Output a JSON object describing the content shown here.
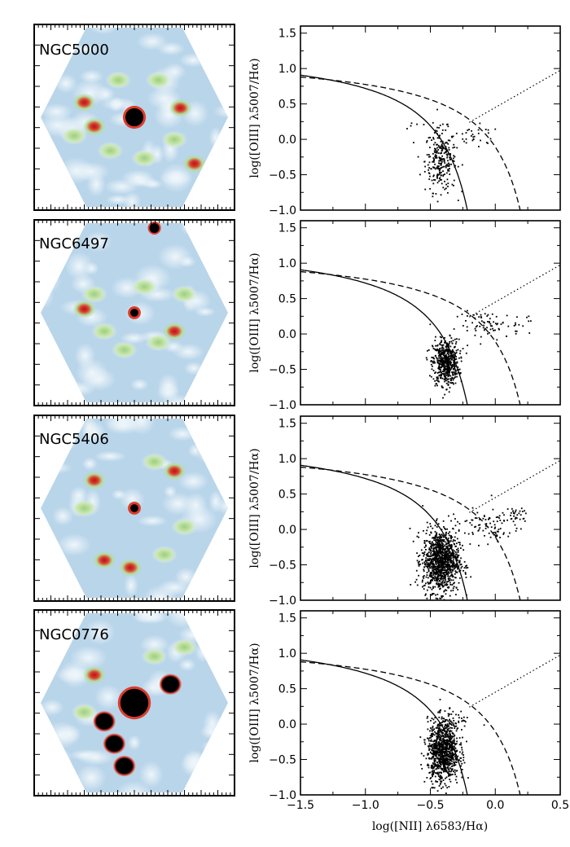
{
  "figure": {
    "x_axis_label": "log([NII] λ6583/Hα)",
    "y_axis_label": "log([OIII] λ5007/Hα)",
    "colors": {
      "map_background": "#b9d5ea",
      "map_light": "#dcecf5",
      "map_green": "#b5dc9a",
      "map_red": "#dc3c2c",
      "map_core": "#000000",
      "ink": "#000000"
    }
  },
  "chart_data": [
    {
      "type": "scatter",
      "galaxy": "NGC5000",
      "title": "",
      "xlabel": "",
      "ylabel": "log([OIII] λ5007/Hα)",
      "xlim": [
        -1.5,
        0.5
      ],
      "ylim": [
        -1.0,
        1.6
      ],
      "yticks": [
        "1.5",
        "1.0",
        "0.5",
        "0.0",
        "−0.5",
        "−1.0"
      ],
      "xticks": [],
      "curves": [
        "kewley-maximum-starburst (dashed)",
        "kauffmann-demarcation (solid)",
        "seyfert-liner-line (dotted)"
      ],
      "clusters": [
        {
          "center_x": -0.42,
          "center_y": -0.3,
          "spread_x": 0.06,
          "spread_y": 0.22,
          "count": 260
        },
        {
          "center_x": -0.15,
          "center_y": 0.03,
          "spread_x": 0.1,
          "spread_y": 0.08,
          "count": 30
        },
        {
          "center_x": -0.6,
          "center_y": 0.2,
          "spread_x": 0.05,
          "spread_y": 0.05,
          "count": 6
        }
      ]
    },
    {
      "type": "scatter",
      "galaxy": "NGC6497",
      "title": "",
      "xlabel": "",
      "ylabel": "log([OIII] λ5007/Hα)",
      "xlim": [
        -1.5,
        0.5
      ],
      "ylim": [
        -1.0,
        1.6
      ],
      "yticks": [
        "1.5",
        "1.0",
        "0.5",
        "0.0",
        "−0.5",
        "−1.0"
      ],
      "xticks": [],
      "curves": [
        "kewley-maximum-starburst (dashed)",
        "kauffmann-demarcation (solid)",
        "seyfert-liner-line (dotted)"
      ],
      "clusters": [
        {
          "center_x": -0.38,
          "center_y": -0.4,
          "spread_x": 0.05,
          "spread_y": 0.16,
          "count": 560
        },
        {
          "center_x": -0.05,
          "center_y": 0.12,
          "spread_x": 0.12,
          "spread_y": 0.1,
          "count": 75
        },
        {
          "center_x": 0.22,
          "center_y": 0.2,
          "spread_x": 0.03,
          "spread_y": 0.04,
          "count": 8
        }
      ]
    },
    {
      "type": "scatter",
      "galaxy": "NGC5406",
      "title": "",
      "xlabel": "",
      "ylabel": "log([OIII] λ5007/Hα)",
      "xlim": [
        -1.5,
        0.5
      ],
      "ylim": [
        -1.0,
        1.6
      ],
      "yticks": [
        "1.5",
        "1.0",
        "0.5",
        "0.0",
        "−0.5",
        "−1.0"
      ],
      "xticks": [],
      "curves": [
        "kewley-maximum-starburst (dashed)",
        "kauffmann-demarcation (solid)",
        "seyfert-liner-line (dotted)"
      ],
      "clusters": [
        {
          "center_x": -0.42,
          "center_y": -0.45,
          "spread_x": 0.07,
          "spread_y": 0.22,
          "count": 1100
        },
        {
          "center_x": -0.08,
          "center_y": 0.05,
          "spread_x": 0.14,
          "spread_y": 0.12,
          "count": 90
        },
        {
          "center_x": 0.15,
          "center_y": 0.2,
          "spread_x": 0.05,
          "spread_y": 0.05,
          "count": 30
        }
      ]
    },
    {
      "type": "scatter",
      "galaxy": "NGC0776",
      "title": "",
      "xlabel": "log([NII] λ6583/Hα)",
      "ylabel": "log([OIII] λ5007/Hα)",
      "xlim": [
        -1.5,
        0.5
      ],
      "ylim": [
        -1.0,
        1.6
      ],
      "yticks": [
        "1.5",
        "1.0",
        "0.5",
        "0.0",
        "−0.5",
        "−1.0"
      ],
      "xticks": [
        "−1.5",
        "−1.0",
        "−0.5",
        "0.0",
        "0.5"
      ],
      "curves": [
        "kewley-maximum-starburst (dashed)",
        "kauffmann-demarcation (solid)",
        "seyfert-liner-line (dotted)"
      ],
      "clusters": [
        {
          "center_x": -0.4,
          "center_y": -0.38,
          "spread_x": 0.06,
          "spread_y": 0.22,
          "count": 950
        },
        {
          "center_x": -0.3,
          "center_y": 0.05,
          "spread_x": 0.05,
          "spread_y": 0.07,
          "count": 30
        }
      ]
    }
  ],
  "maps": [
    {
      "label": "NGC5000",
      "core": [
        0.5,
        0.5
      ],
      "core_size": 0.045,
      "hotspots": [
        [
          0.25,
          0.42,
          "r"
        ],
        [
          0.3,
          0.55,
          "r"
        ],
        [
          0.73,
          0.45,
          "r"
        ],
        [
          0.8,
          0.75,
          "r"
        ],
        [
          0.42,
          0.3,
          "g"
        ],
        [
          0.62,
          0.3,
          "g"
        ],
        [
          0.55,
          0.72,
          "g"
        ],
        [
          0.7,
          0.62,
          "g"
        ],
        [
          0.38,
          0.68,
          "g"
        ],
        [
          0.2,
          0.6,
          "g"
        ]
      ],
      "top_star": false
    },
    {
      "label": "NGC6497",
      "core": [
        0.5,
        0.5
      ],
      "core_size": 0.02,
      "hotspots": [
        [
          0.25,
          0.48,
          "r"
        ],
        [
          0.7,
          0.6,
          "r"
        ],
        [
          0.55,
          0.36,
          "g"
        ],
        [
          0.35,
          0.6,
          "g"
        ],
        [
          0.62,
          0.66,
          "g"
        ],
        [
          0.45,
          0.7,
          "g"
        ],
        [
          0.75,
          0.4,
          "g"
        ],
        [
          0.3,
          0.4,
          "g"
        ]
      ],
      "top_star": true
    },
    {
      "label": "NGC5406",
      "core": [
        0.5,
        0.5
      ],
      "core_size": 0.02,
      "hotspots": [
        [
          0.3,
          0.35,
          "r"
        ],
        [
          0.7,
          0.3,
          "r"
        ],
        [
          0.35,
          0.78,
          "r"
        ],
        [
          0.48,
          0.82,
          "r"
        ],
        [
          0.75,
          0.6,
          "g"
        ],
        [
          0.25,
          0.5,
          "g"
        ],
        [
          0.6,
          0.25,
          "g"
        ],
        [
          0.65,
          0.75,
          "g"
        ]
      ],
      "top_star": false
    },
    {
      "label": "NGC0776",
      "core": [
        0.5,
        0.5
      ],
      "core_size": 0.07,
      "hotspots": [
        [
          0.35,
          0.6,
          "k"
        ],
        [
          0.4,
          0.72,
          "k"
        ],
        [
          0.45,
          0.84,
          "k"
        ],
        [
          0.68,
          0.4,
          "k"
        ],
        [
          0.3,
          0.35,
          "r"
        ],
        [
          0.75,
          0.2,
          "g"
        ],
        [
          0.6,
          0.25,
          "g"
        ],
        [
          0.25,
          0.55,
          "g"
        ]
      ],
      "top_star": false
    }
  ]
}
